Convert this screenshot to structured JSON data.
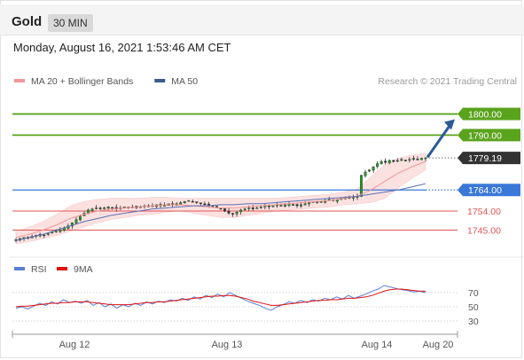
{
  "header": {
    "symbol": "Gold",
    "timeframe": "30 MIN",
    "datetime": "Monday, August 16, 2021 1:53:46 AM CET"
  },
  "legend": [
    {
      "name": "MA 20 + Bollinger Bands",
      "color": "#f09696"
    },
    {
      "name": "MA 50",
      "color": "#3a5a8c"
    }
  ],
  "credit": "Research © 2021 Trading Central",
  "osc_legend": [
    {
      "name": "RSI",
      "color": "#5a7fd6"
    },
    {
      "name": "9MA",
      "color": "#e01010"
    }
  ],
  "colors": {
    "resistance": "#5aa31c",
    "pivot": "#3a78d8",
    "support": "#e05555",
    "last": "#333333",
    "arrow": "#2c5a96"
  },
  "chart_data": {
    "type": "candlestick",
    "ylim": [
      1733,
      1812
    ],
    "x_ticks": [
      "Aug 12",
      "Aug 13",
      "Aug 14",
      "Aug 20"
    ],
    "levels": [
      {
        "label": "1800.00",
        "value": 1800.0,
        "kind": "resistance"
      },
      {
        "label": "1790.00",
        "value": 1790.0,
        "kind": "resistance"
      },
      {
        "label": "1779.19",
        "value": 1779.19,
        "kind": "last"
      },
      {
        "label": "1764.00",
        "value": 1764.0,
        "kind": "pivot"
      },
      {
        "label": "1754.00",
        "value": 1754.0,
        "kind": "support"
      },
      {
        "label": "1745.00",
        "value": 1745.0,
        "kind": "support"
      }
    ],
    "target_arrow": {
      "from": 1779.0,
      "to": 1797.5
    },
    "close": [
      1740.5,
      1741,
      1741.5,
      1741,
      1742,
      1742.5,
      1743,
      1742.5,
      1743.5,
      1744,
      1744.5,
      1745,
      1746,
      1747,
      1748.5,
      1750,
      1751.5,
      1753,
      1754.5,
      1755,
      1755.5,
      1755,
      1755.5,
      1756,
      1755.5,
      1755,
      1755.5,
      1756,
      1755.5,
      1756,
      1755.5,
      1756,
      1756.5,
      1756,
      1756.5,
      1757,
      1756.5,
      1757,
      1757.5,
      1757,
      1757.5,
      1758,
      1758.5,
      1759,
      1758.5,
      1758,
      1757.5,
      1757,
      1756.5,
      1756,
      1755.5,
      1755,
      1754,
      1753,
      1752.5,
      1753.5,
      1754.5,
      1755,
      1755.5,
      1755,
      1755.5,
      1756,
      1756.5,
      1756,
      1756.5,
      1757,
      1756.5,
      1757,
      1757.5,
      1757,
      1756.5,
      1757,
      1757.5,
      1758,
      1758.5,
      1758,
      1758.5,
      1759,
      1759.5,
      1759,
      1759.5,
      1760,
      1760.5,
      1760,
      1760.5,
      1761,
      1771,
      1772.5,
      1773.5,
      1775,
      1776.5,
      1777.5,
      1777,
      1778,
      1777.5,
      1778,
      1778.5,
      1778,
      1778.5,
      1779,
      1778.5,
      1779,
      1779.19
    ],
    "volatility": 1.4,
    "ma20": [
      1741.5,
      1743,
      1745,
      1747.5,
      1750.5,
      1752.5,
      1754,
      1755,
      1755.5,
      1756,
      1756.5,
      1757,
      1757,
      1756.5,
      1756,
      1755.5,
      1755.5,
      1756,
      1756.5,
      1757,
      1757.5,
      1758,
      1758.5,
      1759,
      1760,
      1761,
      1764,
      1768,
      1772,
      1775,
      1777.5
    ],
    "ma50": [
      1740,
      1741.5,
      1743,
      1745,
      1747,
      1749,
      1750.5,
      1752,
      1753,
      1754,
      1755,
      1755.5,
      1756,
      1756.5,
      1756.5,
      1757,
      1757,
      1757.5,
      1757.5,
      1758,
      1758.5,
      1759,
      1759.5,
      1760,
      1760.5,
      1761,
      1762,
      1763,
      1764,
      1765.5,
      1767
    ],
    "bb_width": [
      3,
      3.5,
      4,
      5,
      6,
      6,
      5.5,
      5,
      4.5,
      4,
      4,
      3.5,
      3,
      3.5,
      4,
      4.5,
      4.5,
      4,
      3.5,
      3,
      3,
      3,
      3,
      3,
      3,
      3.5,
      6,
      8,
      7,
      5.5,
      4
    ],
    "osc": {
      "ticks": [
        "70",
        "50",
        "30"
      ],
      "rsi": [
        48,
        50,
        47,
        51,
        55,
        52,
        57,
        54,
        60,
        56,
        58,
        55,
        59,
        52,
        56,
        50,
        54,
        48,
        53,
        50,
        55,
        52,
        57,
        54,
        58,
        56,
        60,
        58,
        62,
        59,
        64,
        61,
        66,
        63,
        68,
        64,
        70,
        66,
        62,
        58,
        55,
        52,
        48,
        45,
        50,
        53,
        57,
        55,
        59,
        56,
        60,
        58,
        62,
        60,
        64,
        61,
        66,
        62,
        65,
        68,
        72,
        75,
        80,
        78,
        76,
        74,
        73,
        71,
        72,
        70
      ],
      "ma9": [
        50,
        51,
        51,
        52,
        53,
        54,
        55,
        55,
        56,
        56,
        57,
        57,
        57,
        56,
        55,
        54,
        53,
        53,
        53,
        53,
        54,
        55,
        56,
        56,
        57,
        57,
        58,
        59,
        60,
        61,
        62,
        63,
        64,
        65,
        65,
        66,
        66,
        65,
        63,
        61,
        58,
        56,
        54,
        52,
        52,
        53,
        54,
        55,
        56,
        57,
        58,
        59,
        59,
        60,
        60,
        61,
        62,
        62,
        63,
        64,
        66,
        69,
        72,
        74,
        75,
        75,
        74,
        73,
        72,
        72
      ]
    }
  }
}
